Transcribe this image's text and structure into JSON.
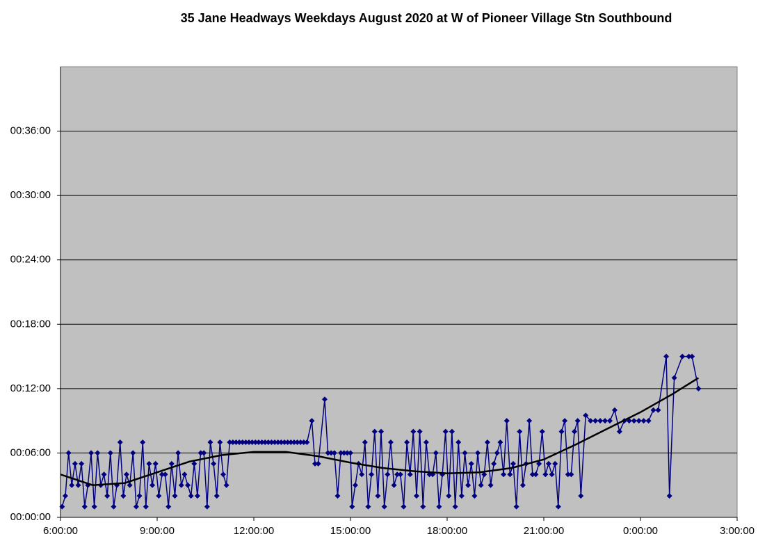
{
  "chart_data": {
    "type": "line",
    "title": "35 Jane Headways Weekdays August 2020 at W of Pioneer Village Stn Southbound",
    "xlim": [
      6,
      27
    ],
    "xticks": [
      {
        "value": 6,
        "label": "6:00:00"
      },
      {
        "value": 9,
        "label": "9:00:00"
      },
      {
        "value": 12,
        "label": "12:00:00"
      },
      {
        "value": 15,
        "label": "15:00:00"
      },
      {
        "value": 18,
        "label": "18:00:00"
      },
      {
        "value": 21,
        "label": "21:00:00"
      },
      {
        "value": 24,
        "label": "0:00:00"
      },
      {
        "value": 27,
        "label": "3:00:00"
      }
    ],
    "ylim": [
      0,
      42
    ],
    "yticks": [
      {
        "value": 0,
        "label": "00:00:00"
      },
      {
        "value": 6,
        "label": "00:06:00"
      },
      {
        "value": 12,
        "label": "00:12:00"
      },
      {
        "value": 18,
        "label": "00:18:00"
      },
      {
        "value": 24,
        "label": "00:24:00"
      },
      {
        "value": 30,
        "label": "00:30:00"
      },
      {
        "value": 36,
        "label": "00:36:00"
      }
    ],
    "grid": true,
    "background": "#c0c0c0",
    "series": [
      {
        "color": "#000080",
        "markers": true,
        "x": [
          6.05,
          6.15,
          6.25,
          6.35,
          6.45,
          6.55,
          6.65,
          6.75,
          6.85,
          6.95,
          7.05,
          7.15,
          7.25,
          7.35,
          7.45,
          7.55,
          7.65,
          7.75,
          7.85,
          7.95,
          8.05,
          8.15,
          8.25,
          8.35,
          8.45,
          8.55,
          8.65,
          8.75,
          8.85,
          8.95,
          9.05,
          9.15,
          9.25,
          9.35,
          9.45,
          9.55,
          9.65,
          9.75,
          9.85,
          9.95,
          10.05,
          10.15,
          10.25,
          10.35,
          10.45,
          10.55,
          10.65,
          10.75,
          10.85,
          10.95,
          11.05,
          11.15,
          11.25,
          11.35,
          11.45,
          11.55,
          11.65,
          11.75,
          11.85,
          11.95,
          12.05,
          12.15,
          12.25,
          12.35,
          12.45,
          12.55,
          12.65,
          12.75,
          12.85,
          12.95,
          13.05,
          13.15,
          13.25,
          13.35,
          13.45,
          13.55,
          13.65,
          13.8,
          13.9,
          14,
          14.2,
          14.3,
          14.4,
          14.5,
          14.6,
          14.7,
          14.8,
          14.9,
          15,
          15.05,
          15.15,
          15.25,
          15.35,
          15.45,
          15.55,
          15.65,
          15.75,
          15.85,
          15.95,
          16.05,
          16.15,
          16.25,
          16.35,
          16.45,
          16.55,
          16.65,
          16.75,
          16.85,
          16.95,
          17.05,
          17.15,
          17.25,
          17.35,
          17.45,
          17.55,
          17.65,
          17.75,
          17.85,
          17.95,
          18.05,
          18.15,
          18.25,
          18.35,
          18.45,
          18.55,
          18.65,
          18.75,
          18.85,
          18.95,
          19.05,
          19.15,
          19.25,
          19.35,
          19.45,
          19.55,
          19.65,
          19.75,
          19.85,
          19.95,
          20.05,
          20.15,
          20.25,
          20.35,
          20.45,
          20.55,
          20.65,
          20.75,
          20.85,
          20.95,
          21.05,
          21.15,
          21.25,
          21.35,
          21.45,
          21.55,
          21.65,
          21.75,
          21.85,
          21.95,
          22.05,
          22.15,
          22.3,
          22.45,
          22.6,
          22.75,
          22.9,
          23.05,
          23.2,
          23.35,
          23.5,
          23.65,
          23.8,
          23.95,
          24.1,
          24.25,
          24.4,
          24.55,
          24.8,
          24.9,
          25.05,
          25.3,
          25.5,
          25.6,
          25.8
        ],
        "values": [
          1,
          2,
          6,
          3,
          5,
          3,
          5,
          1,
          3,
          6,
          1,
          6,
          3,
          4,
          2,
          6,
          1,
          3,
          7,
          2,
          4,
          3,
          6,
          1,
          2,
          7,
          1,
          5,
          3,
          5,
          2,
          4,
          4,
          1,
          5,
          2,
          6,
          3,
          4,
          3,
          2,
          5,
          2,
          6,
          6,
          1,
          7,
          5,
          2,
          7,
          4,
          3,
          7,
          7,
          7,
          7,
          7,
          7,
          7,
          7,
          7,
          7,
          7,
          7,
          7,
          7,
          7,
          7,
          7,
          7,
          7,
          7,
          7,
          7,
          7,
          7,
          7,
          9,
          5,
          5,
          11,
          6,
          6,
          6,
          2,
          6,
          6,
          6,
          6,
          1,
          3,
          5,
          4,
          7,
          1,
          4,
          8,
          2,
          8,
          1,
          4,
          7,
          3,
          4,
          4,
          1,
          7,
          4,
          8,
          2,
          8,
          1,
          7,
          4,
          4,
          6,
          1,
          4,
          8,
          2,
          8,
          1,
          7,
          2,
          6,
          3,
          5,
          2,
          6,
          3,
          4,
          7,
          3,
          5,
          6,
          7,
          4,
          9,
          4,
          5,
          1,
          8,
          3,
          5,
          9,
          4,
          4,
          5,
          8,
          4,
          5,
          4,
          5,
          1,
          8,
          9,
          4,
          4,
          8,
          9,
          2,
          9.5,
          9,
          9,
          9,
          9,
          9,
          10,
          8,
          9,
          9,
          9,
          9,
          9,
          9,
          10,
          10,
          15,
          2,
          13,
          15,
          15,
          15,
          12
        ]
      },
      {
        "color": "#000000",
        "markers": false,
        "x": [
          6,
          7,
          8,
          9,
          10,
          11,
          12,
          13,
          14,
          15,
          16,
          17,
          18,
          19,
          20,
          21,
          22,
          23,
          24,
          25,
          25.8
        ],
        "values": [
          4,
          3,
          3.2,
          4.2,
          5.2,
          5.8,
          6.1,
          6.1,
          5.7,
          5.1,
          4.6,
          4.3,
          4.1,
          4.2,
          4.6,
          5.4,
          6.8,
          8.3,
          9.8,
          11.5,
          13
        ]
      }
    ]
  }
}
